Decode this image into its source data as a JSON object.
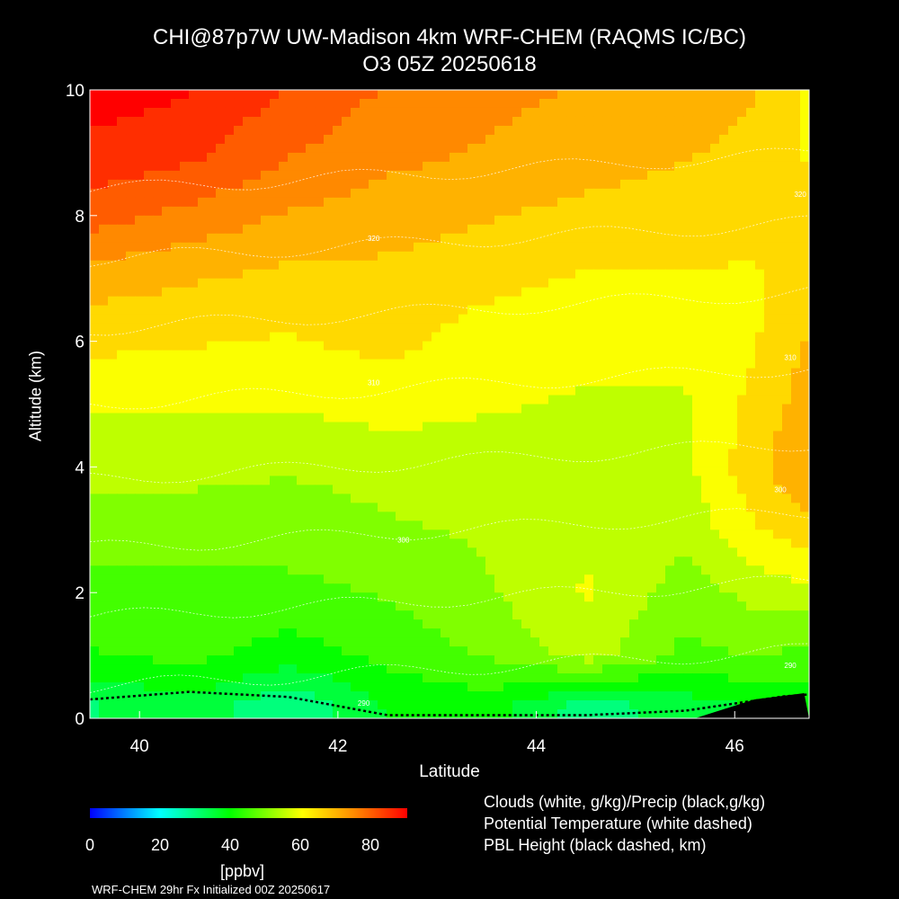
{
  "header": {
    "title_line1": "CHI@87p7W UW-Madison 4km WRF-CHEM (RAQMS IC/BC)",
    "title_line2": "O3 05Z 20250618"
  },
  "chart_data": {
    "type": "heatmap",
    "xlabel": "Latitude",
    "ylabel": "Altitude (km)",
    "xlim": [
      39.5,
      46.75
    ],
    "ylim": [
      0,
      10
    ],
    "x_ticks": [
      "40",
      "42",
      "44",
      "46"
    ],
    "y_ticks": [
      "0",
      "2",
      "4",
      "6",
      "8",
      "10"
    ],
    "colorbar": {
      "min": 0,
      "max": 90,
      "ticks": [
        "0",
        "20",
        "40",
        "60",
        "80"
      ],
      "unit": "[ppbv]",
      "colors": [
        "#0000ff",
        "#00ffff",
        "#00ff00",
        "#ffff00",
        "#ff8c00",
        "#ff0000"
      ]
    },
    "field_o3_ppbv": {
      "altitude_km": [
        0.2,
        1,
        2,
        3,
        4,
        5,
        6,
        7,
        8,
        9,
        10
      ],
      "latitude": [
        39.5,
        40.5,
        41.5,
        42.5,
        43.5,
        44.5,
        45.5,
        46.2,
        46.75
      ],
      "values": [
        [
          32,
          36,
          28,
          38,
          40,
          30,
          35,
          38,
          40
        ],
        [
          42,
          44,
          40,
          44,
          48,
          55,
          46,
          48,
          46
        ],
        [
          46,
          46,
          46,
          48,
          52,
          58,
          50,
          54,
          56
        ],
        [
          50,
          50,
          50,
          52,
          53,
          57,
          54,
          62,
          66
        ],
        [
          54,
          54,
          53,
          54,
          55,
          56,
          56,
          66,
          72
        ],
        [
          58,
          58,
          58,
          60,
          58,
          57,
          57,
          64,
          70
        ],
        [
          64,
          63,
          62,
          64,
          60,
          59,
          59,
          62,
          68
        ],
        [
          70,
          68,
          66,
          66,
          64,
          62,
          62,
          62,
          64
        ],
        [
          80,
          76,
          72,
          70,
          68,
          66,
          65,
          64,
          64
        ],
        [
          86,
          84,
          78,
          74,
          72,
          70,
          68,
          66,
          62
        ],
        [
          90,
          88,
          82,
          77,
          74,
          72,
          70,
          68,
          62
        ]
      ]
    },
    "potential_temperature_labels": [
      "290",
      "300",
      "310",
      "320"
    ],
    "pbl_height_km": {
      "latitude": [
        39.5,
        40.5,
        41.5,
        42.5,
        43.5,
        44.5,
        45.5,
        46.5,
        46.75
      ],
      "values": [
        0.3,
        0.42,
        0.34,
        0.05,
        0.05,
        0.05,
        0.12,
        0.35,
        0.38
      ]
    }
  },
  "legend": {
    "line1": "Clouds (white, g/kg)/Precip (black,g/kg)",
    "line2": "Potential Temperature (white dashed)",
    "line3": "PBL Height (black dashed, km)"
  },
  "footer": {
    "text": "WRF-CHEM 29hr  Fx Initialized 00Z 20250617"
  }
}
